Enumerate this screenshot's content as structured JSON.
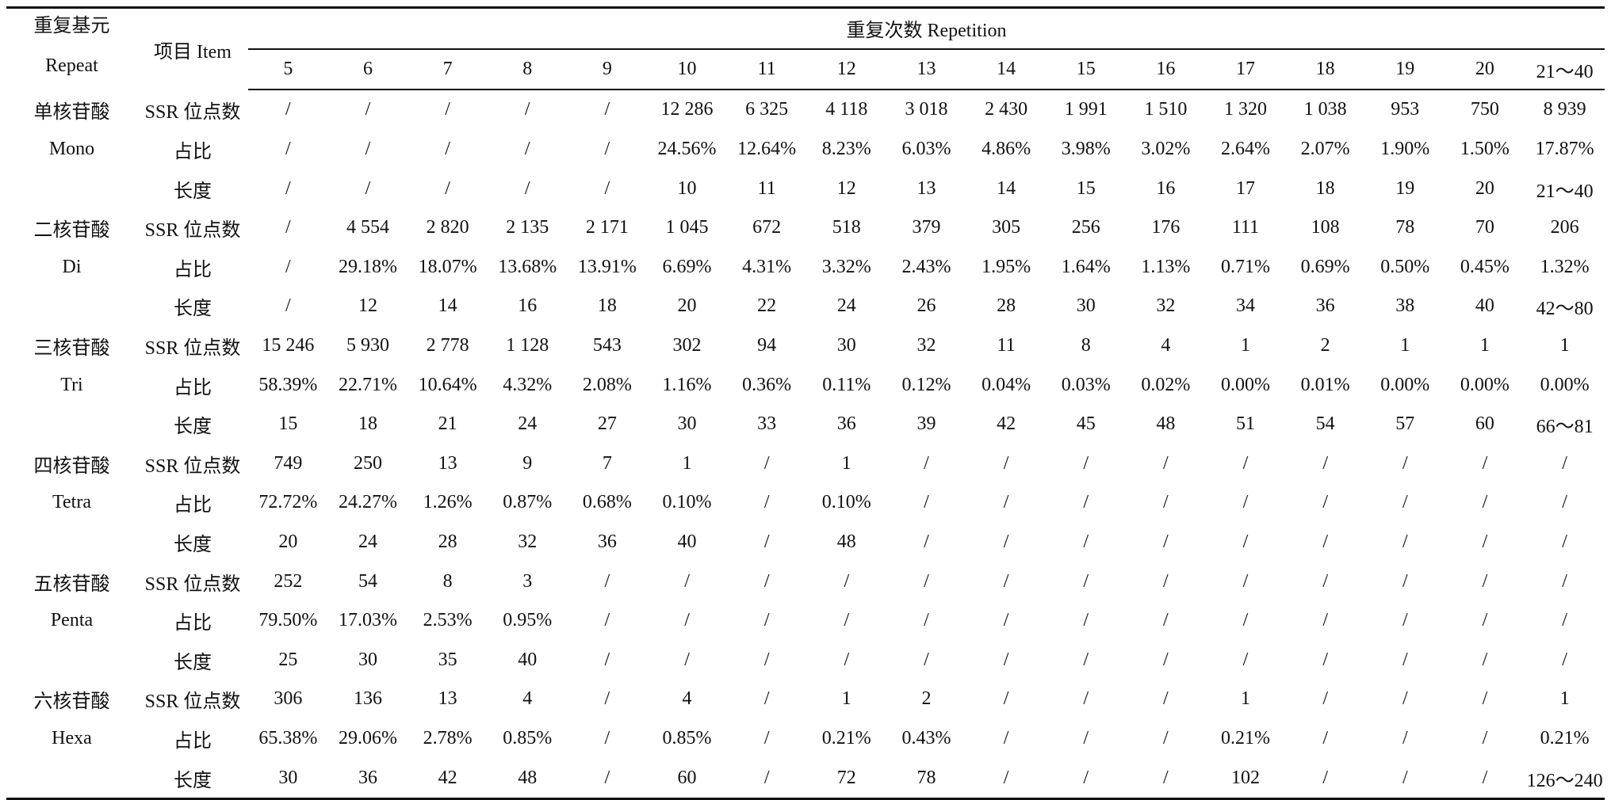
{
  "header": {
    "repeat_cn": "重复基元",
    "repeat_en": "Repeat",
    "item": "项目 Item",
    "repetition": "重复次数 Repetition",
    "columns": [
      "5",
      "6",
      "7",
      "8",
      "9",
      "10",
      "11",
      "12",
      "13",
      "14",
      "15",
      "16",
      "17",
      "18",
      "19",
      "20",
      "21～40"
    ]
  },
  "groups": [
    {
      "name_cn": "单核苷酸",
      "name_en": "Mono",
      "rows": [
        {
          "item": "SSR 位点数",
          "cells": [
            "/",
            "/",
            "/",
            "/",
            "/",
            "12 286",
            "6 325",
            "4 118",
            "3 018",
            "2 430",
            "1 991",
            "1 510",
            "1 320",
            "1 038",
            "953",
            "750",
            "8 939"
          ]
        },
        {
          "item": "占比",
          "cells": [
            "/",
            "/",
            "/",
            "/",
            "/",
            "24.56%",
            "12.64%",
            "8.23%",
            "6.03%",
            "4.86%",
            "3.98%",
            "3.02%",
            "2.64%",
            "2.07%",
            "1.90%",
            "1.50%",
            "17.87%"
          ]
        },
        {
          "item": "长度",
          "cells": [
            "/",
            "/",
            "/",
            "/",
            "/",
            "10",
            "11",
            "12",
            "13",
            "14",
            "15",
            "16",
            "17",
            "18",
            "19",
            "20",
            "21～40"
          ]
        }
      ]
    },
    {
      "name_cn": "二核苷酸",
      "name_en": "Di",
      "rows": [
        {
          "item": "SSR 位点数",
          "cells": [
            "/",
            "4 554",
            "2 820",
            "2 135",
            "2 171",
            "1 045",
            "672",
            "518",
            "379",
            "305",
            "256",
            "176",
            "111",
            "108",
            "78",
            "70",
            "206"
          ]
        },
        {
          "item": "占比",
          "cells": [
            "/",
            "29.18%",
            "18.07%",
            "13.68%",
            "13.91%",
            "6.69%",
            "4.31%",
            "3.32%",
            "2.43%",
            "1.95%",
            "1.64%",
            "1.13%",
            "0.71%",
            "0.69%",
            "0.50%",
            "0.45%",
            "1.32%"
          ]
        },
        {
          "item": "长度",
          "cells": [
            "/",
            "12",
            "14",
            "16",
            "18",
            "20",
            "22",
            "24",
            "26",
            "28",
            "30",
            "32",
            "34",
            "36",
            "38",
            "40",
            "42～80"
          ]
        }
      ]
    },
    {
      "name_cn": "三核苷酸",
      "name_en": "Tri",
      "rows": [
        {
          "item": "SSR 位点数",
          "cells": [
            "15 246",
            "5 930",
            "2 778",
            "1 128",
            "543",
            "302",
            "94",
            "30",
            "32",
            "11",
            "8",
            "4",
            "1",
            "2",
            "1",
            "1",
            "1"
          ]
        },
        {
          "item": "占比",
          "cells": [
            "58.39%",
            "22.71%",
            "10.64%",
            "4.32%",
            "2.08%",
            "1.16%",
            "0.36%",
            "0.11%",
            "0.12%",
            "0.04%",
            "0.03%",
            "0.02%",
            "0.00%",
            "0.01%",
            "0.00%",
            "0.00%",
            "0.00%"
          ]
        },
        {
          "item": "长度",
          "cells": [
            "15",
            "18",
            "21",
            "24",
            "27",
            "30",
            "33",
            "36",
            "39",
            "42",
            "45",
            "48",
            "51",
            "54",
            "57",
            "60",
            "66～81"
          ]
        }
      ]
    },
    {
      "name_cn": "四核苷酸",
      "name_en": "Tetra",
      "rows": [
        {
          "item": "SSR 位点数",
          "cells": [
            "749",
            "250",
            "13",
            "9",
            "7",
            "1",
            "/",
            "1",
            "/",
            "/",
            "/",
            "/",
            "/",
            "/",
            "/",
            "/",
            "/"
          ]
        },
        {
          "item": "占比",
          "cells": [
            "72.72%",
            "24.27%",
            "1.26%",
            "0.87%",
            "0.68%",
            "0.10%",
            "/",
            "0.10%",
            "/",
            "/",
            "/",
            "/",
            "/",
            "/",
            "/",
            "/",
            "/"
          ]
        },
        {
          "item": "长度",
          "cells": [
            "20",
            "24",
            "28",
            "32",
            "36",
            "40",
            "/",
            "48",
            "/",
            "/",
            "/",
            "/",
            "/",
            "/",
            "/",
            "/",
            "/"
          ]
        }
      ]
    },
    {
      "name_cn": "五核苷酸",
      "name_en": "Penta",
      "rows": [
        {
          "item": "SSR 位点数",
          "cells": [
            "252",
            "54",
            "8",
            "3",
            "/",
            "/",
            "/",
            "/",
            "/",
            "/",
            "/",
            "/",
            "/",
            "/",
            "/",
            "/",
            "/"
          ]
        },
        {
          "item": "占比",
          "cells": [
            "79.50%",
            "17.03%",
            "2.53%",
            "0.95%",
            "/",
            "/",
            "/",
            "/",
            "/",
            "/",
            "/",
            "/",
            "/",
            "/",
            "/",
            "/",
            "/"
          ]
        },
        {
          "item": "长度",
          "cells": [
            "25",
            "30",
            "35",
            "40",
            "/",
            "/",
            "/",
            "/",
            "/",
            "/",
            "/",
            "/",
            "/",
            "/",
            "/",
            "/",
            "/"
          ]
        }
      ]
    },
    {
      "name_cn": "六核苷酸",
      "name_en": "Hexa",
      "rows": [
        {
          "item": "SSR 位点数",
          "cells": [
            "306",
            "136",
            "13",
            "4",
            "/",
            "4",
            "/",
            "1",
            "2",
            "/",
            "/",
            "/",
            "1",
            "/",
            "/",
            "/",
            "1"
          ]
        },
        {
          "item": "占比",
          "cells": [
            "65.38%",
            "29.06%",
            "2.78%",
            "0.85%",
            "/",
            "0.85%",
            "/",
            "0.21%",
            "0.43%",
            "/",
            "/",
            "/",
            "0.21%",
            "/",
            "/",
            "/",
            "0.21%"
          ]
        },
        {
          "item": "长度",
          "cells": [
            "30",
            "36",
            "42",
            "48",
            "/",
            "60",
            "/",
            "72",
            "78",
            "/",
            "/",
            "/",
            "102",
            "/",
            "/",
            "/",
            "126～240"
          ]
        }
      ]
    }
  ]
}
